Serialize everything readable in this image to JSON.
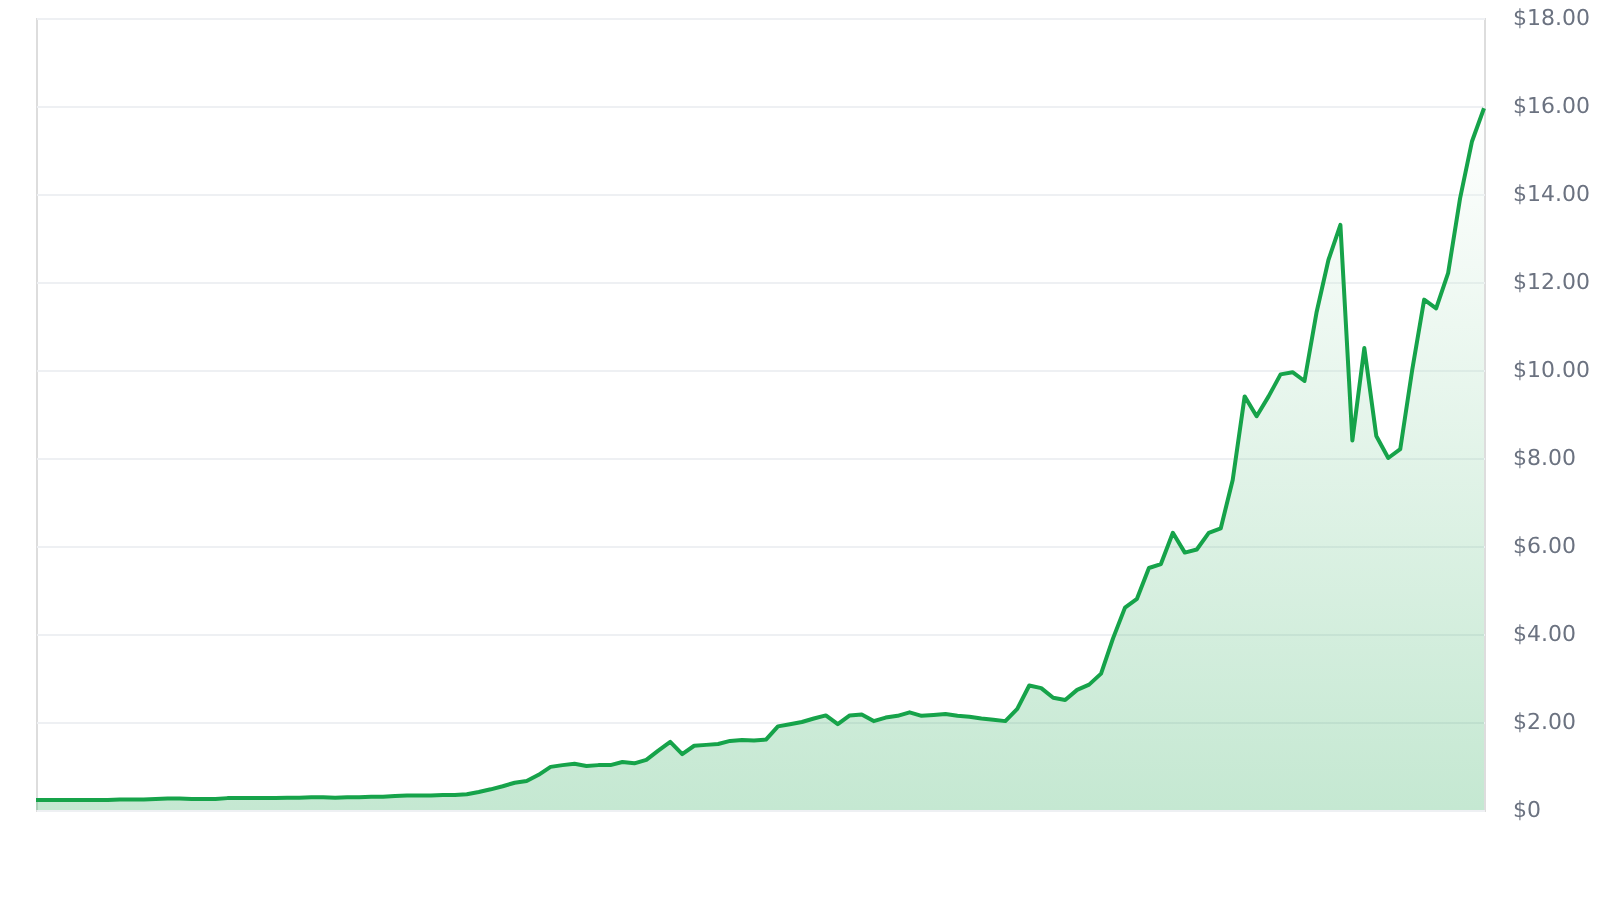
{
  "chart_data": {
    "type": "area",
    "categories": [
      null,
      null,
      null,
      null,
      null,
      null,
      null,
      null,
      null,
      null,
      null,
      null,
      null,
      null,
      null,
      null,
      null,
      null,
      null,
      null,
      null,
      null,
      null,
      null,
      null,
      null,
      null,
      null,
      null,
      null,
      null,
      null,
      null,
      null,
      null,
      null,
      null,
      null,
      null,
      null,
      null,
      null,
      null,
      null,
      null,
      null,
      null,
      null,
      null,
      null,
      null,
      null,
      null,
      null,
      null,
      null,
      null,
      null,
      null,
      null,
      null,
      null,
      null,
      null,
      null,
      null,
      null,
      null,
      null,
      null,
      null,
      null,
      null,
      null,
      null,
      null,
      null,
      null,
      null,
      null,
      null,
      null,
      null,
      null,
      null,
      null,
      null,
      null,
      null,
      null,
      null,
      null,
      null,
      null,
      null,
      null,
      null,
      null,
      null,
      null,
      null,
      null,
      null,
      null,
      null,
      null,
      null,
      null,
      null,
      null,
      null,
      null,
      null,
      null,
      null,
      null,
      null,
      null,
      null,
      null,
      null,
      null
    ],
    "series": [
      {
        "color": "#16a34a",
        "values": [
          0.23,
          0.23,
          0.23,
          0.23,
          0.23,
          0.23,
          0.23,
          0.24,
          0.24,
          0.24,
          0.25,
          0.26,
          0.26,
          0.25,
          0.25,
          0.25,
          0.27,
          0.27,
          0.27,
          0.27,
          0.27,
          0.28,
          0.28,
          0.29,
          0.29,
          0.28,
          0.29,
          0.29,
          0.3,
          0.3,
          0.32,
          0.33,
          0.33,
          0.33,
          0.34,
          0.34,
          0.36,
          0.41,
          0.47,
          0.54,
          0.62,
          0.66,
          0.8,
          0.98,
          1.02,
          1.05,
          1.0,
          1.02,
          1.02,
          1.09,
          1.06,
          1.14,
          1.35,
          1.55,
          1.27,
          1.46,
          1.48,
          1.5,
          1.57,
          1.59,
          1.58,
          1.6,
          1.9,
          1.95,
          2.0,
          2.08,
          2.15,
          1.95,
          2.15,
          2.17,
          2.02,
          2.1,
          2.14,
          2.22,
          2.14,
          2.16,
          2.18,
          2.14,
          2.12,
          2.08,
          2.05,
          2.02,
          2.3,
          2.83,
          2.77,
          2.55,
          2.5,
          2.73,
          2.85,
          3.1,
          3.9,
          4.6,
          4.8,
          5.5,
          5.59,
          6.3,
          5.85,
          5.92,
          6.3,
          6.4,
          7.5,
          9.4,
          8.95,
          9.4,
          9.9,
          9.95,
          9.75,
          11.3,
          12.5,
          13.3,
          8.4,
          10.5,
          8.5,
          8.0,
          8.2,
          10.0,
          11.6,
          11.4,
          12.2,
          13.9,
          15.2,
          15.95
        ]
      }
    ],
    "ylim": [
      0,
      18
    ],
    "yticks": [
      {
        "value": 0,
        "label": "$0"
      },
      {
        "value": 2,
        "label": "$2.00"
      },
      {
        "value": 4,
        "label": "$4.00"
      },
      {
        "value": 6,
        "label": "$6.00"
      },
      {
        "value": 8,
        "label": "$8.00"
      },
      {
        "value": 10,
        "label": "$10.00"
      },
      {
        "value": 12,
        "label": "$12.00"
      },
      {
        "value": 14,
        "label": "$14.00"
      },
      {
        "value": 16,
        "label": "$16.00"
      },
      {
        "value": 18,
        "label": "$18.00"
      }
    ],
    "grid": "y",
    "tick_labels": "y"
  }
}
